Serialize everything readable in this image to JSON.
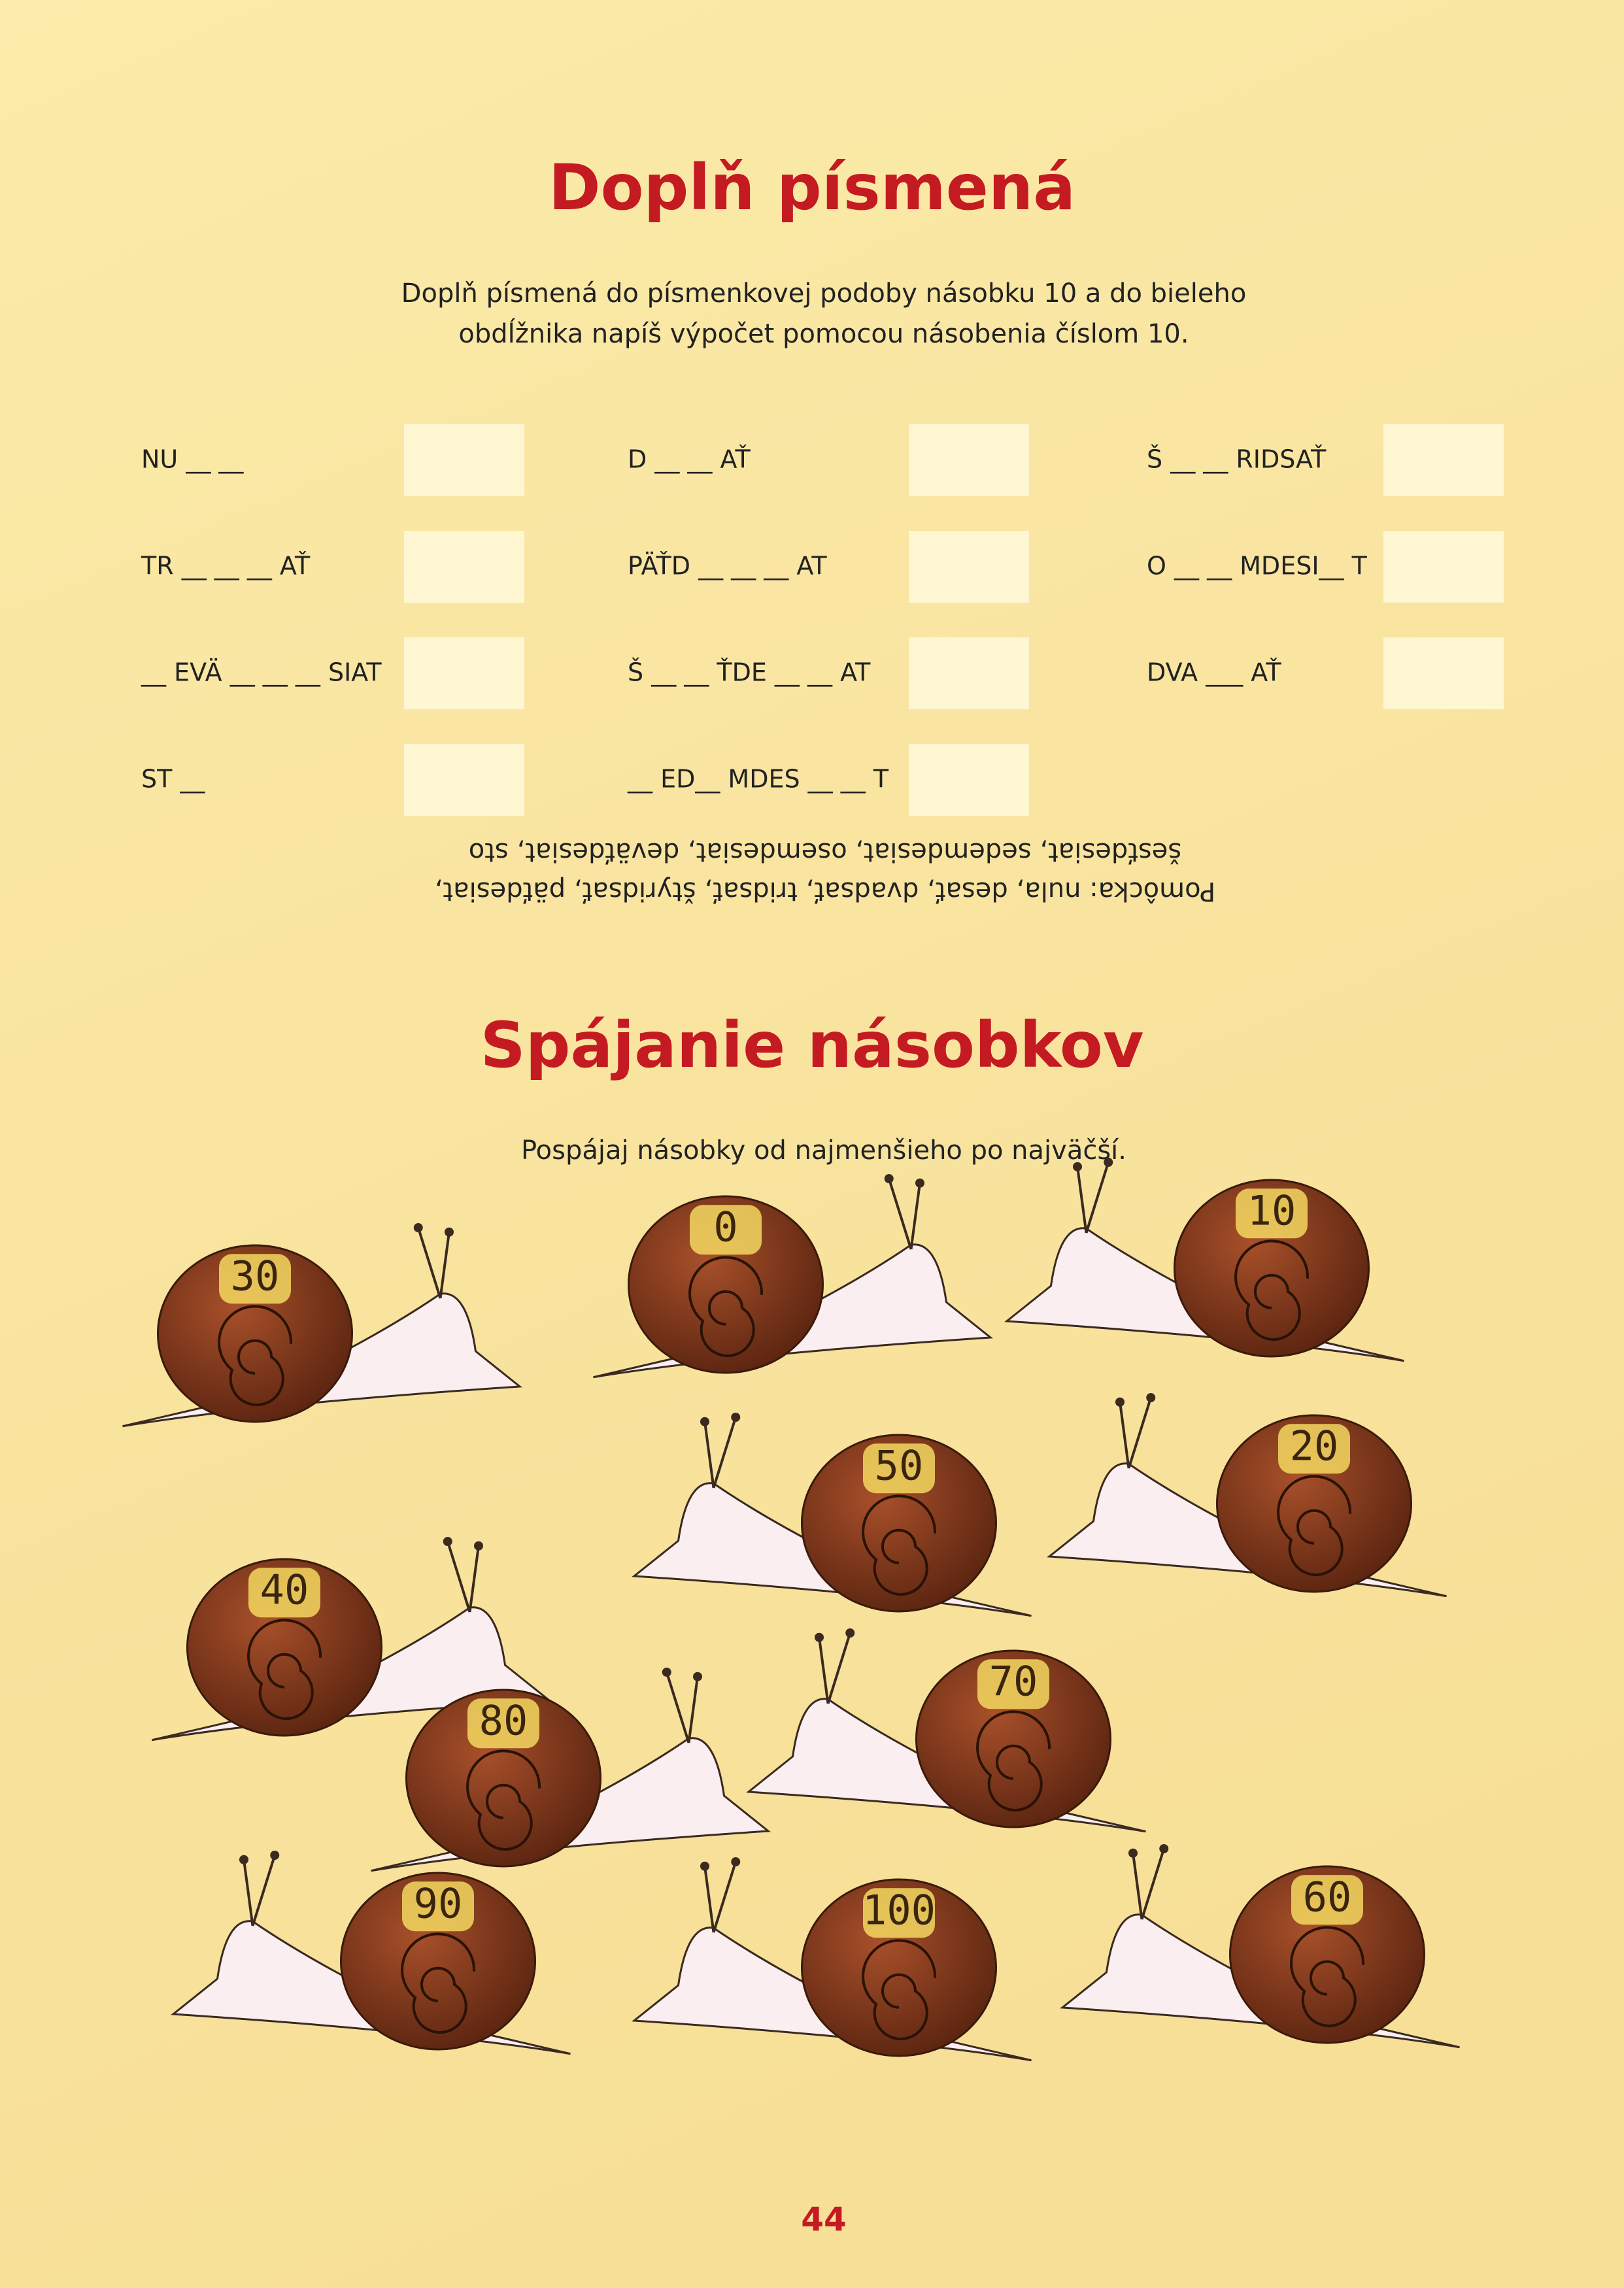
{
  "section1": {
    "title": "Doplň písmená",
    "instructions": [
      "Doplň písmená do písmenkovej podoby násobku 10 a do bieleho",
      "obdĺžnika napíš výpočet pomocou násobenia číslom 10."
    ],
    "columns": [
      [
        "NU __ __",
        "TR __ __ __ AŤ",
        "__ EVÄ __ __ __ SIAT",
        "ST __"
      ],
      [
        "D __ __ AŤ",
        "PÄŤD __ __ __ AT",
        "Š __ __ ŤDE __ __ AT",
        "__ ED__ MDES __ __ T"
      ],
      [
        "Š __ __ RIDSAŤ",
        "O __ __ MDESI__ T",
        "DVA ___ AŤ"
      ]
    ],
    "hint": [
      "Pomôcka: nula, desať, dvadsať, tridsať, štyridsať, päťdesiat,",
      "šesťdesiat, sedemdesiat, osemdesiat, deväťdesiat, sto"
    ]
  },
  "section2": {
    "title": "Spájanie násobkov",
    "instruction": "Pospájaj násobky od najmenšieho po najväčší.",
    "snails": [
      30,
      0,
      10,
      40,
      50,
      20,
      80,
      70,
      90,
      100,
      60
    ]
  },
  "page_number": 44
}
